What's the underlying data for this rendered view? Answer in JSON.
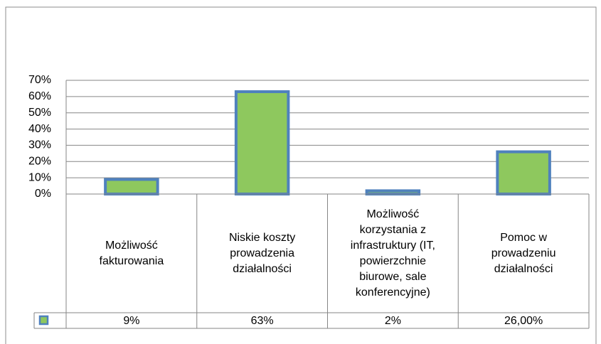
{
  "chart_data": {
    "type": "bar",
    "categories": [
      "Możliwość\nfakturowania",
      "Niskie koszty\nprowadzenia\ndziałalności",
      "Możliwość\nkorzystania z\ninfrastruktury (IT,\npowierzchnie\nbiurowe, sale\nkonferencyjne)",
      "Pomoc w\nprowadzeniu\ndziałalności"
    ],
    "values": [
      9,
      63,
      2,
      26
    ],
    "value_labels": [
      "9%",
      "63%",
      "2%",
      "26,00%"
    ],
    "color": "#8ec85e",
    "edge_color": "#4f81bd",
    "ylim": [
      0,
      70
    ],
    "yticks": [
      {
        "value": 0,
        "label": "0%"
      },
      {
        "value": 10,
        "label": "10%"
      },
      {
        "value": 20,
        "label": "20%"
      },
      {
        "value": 30,
        "label": "30%"
      },
      {
        "value": 40,
        "label": "40%"
      },
      {
        "value": 50,
        "label": "50%"
      },
      {
        "value": 60,
        "label": "60%"
      },
      {
        "value": 70,
        "label": "70%"
      }
    ],
    "grid": true,
    "data_table": true
  }
}
